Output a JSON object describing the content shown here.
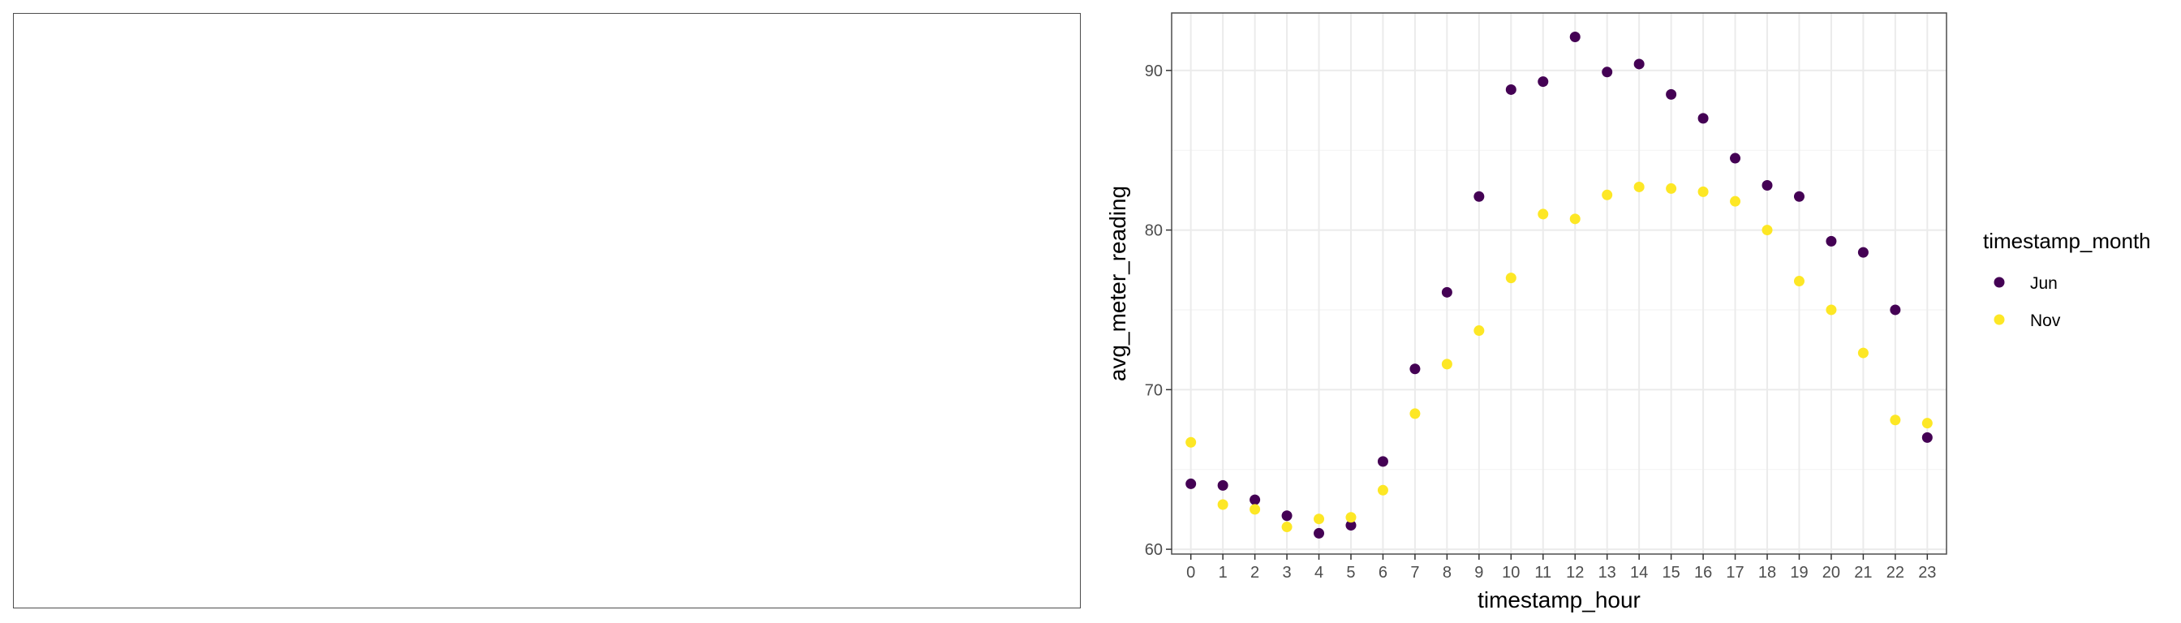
{
  "chart_data": {
    "type": "scatter",
    "xlabel": "timestamp_hour",
    "ylabel": "avg_meter_reading",
    "x": [
      0,
      1,
      2,
      3,
      4,
      5,
      6,
      7,
      8,
      9,
      10,
      11,
      12,
      13,
      14,
      15,
      16,
      17,
      18,
      19,
      20,
      21,
      22,
      23
    ],
    "x_tick_labels": [
      "0",
      "1",
      "2",
      "3",
      "4",
      "5",
      "6",
      "7",
      "8",
      "9",
      "10",
      "11",
      "12",
      "13",
      "14",
      "15",
      "16",
      "17",
      "18",
      "19",
      "20",
      "21",
      "22",
      "23"
    ],
    "y_ticks": [
      60,
      70,
      80,
      90
    ],
    "y_tick_labels": [
      "60",
      "70",
      "80",
      "90"
    ],
    "ylim": [
      59.7,
      93.6
    ],
    "xlim": [
      -0.6,
      23.6
    ],
    "grid": true,
    "legend_title": "timestamp_month",
    "legend_position": "right",
    "series": [
      {
        "name": "Jun",
        "color": "#440154",
        "values": [
          64.1,
          64.0,
          63.1,
          62.1,
          61.0,
          61.5,
          65.5,
          71.3,
          76.1,
          82.1,
          88.8,
          89.3,
          92.1,
          89.9,
          90.4,
          88.5,
          87.0,
          84.5,
          82.8,
          82.1,
          79.3,
          78.6,
          75.0,
          67.0
        ]
      },
      {
        "name": "Nov",
        "color": "#fde725",
        "values": [
          66.7,
          62.8,
          62.5,
          61.4,
          61.9,
          62.0,
          63.7,
          68.5,
          71.6,
          73.7,
          77.0,
          81.0,
          80.7,
          82.2,
          82.7,
          82.6,
          82.4,
          81.8,
          80.0,
          76.8,
          75.0,
          72.3,
          68.1,
          67.9
        ]
      }
    ]
  }
}
